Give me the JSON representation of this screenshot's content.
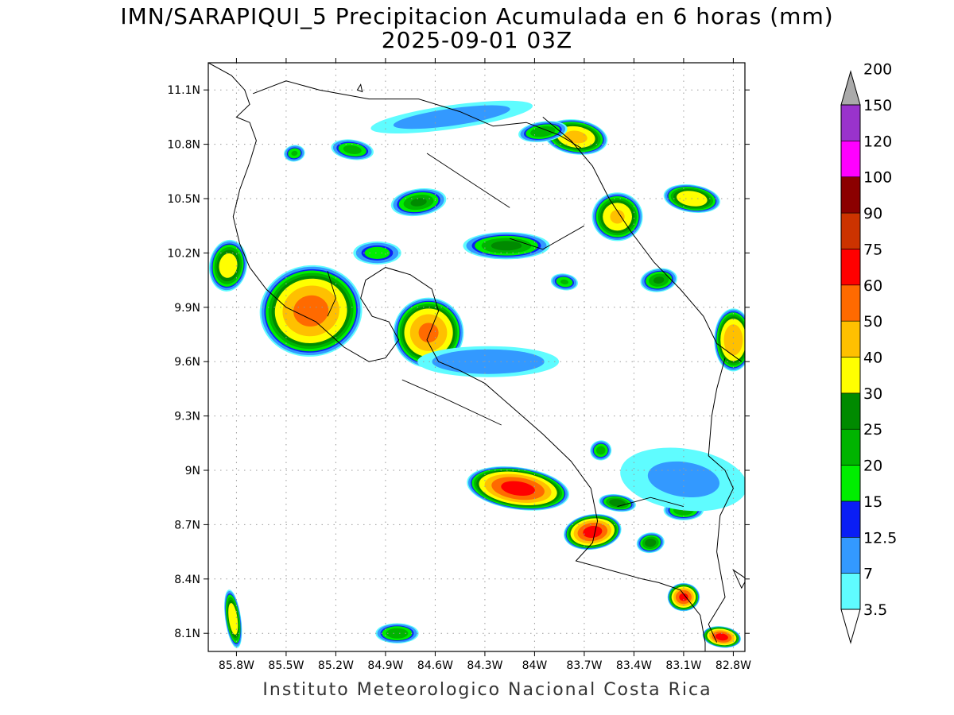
{
  "title": {
    "line1": "IMN/SARAPIQUI_5 Precipitacion Acumulada en 6 horas (mm)",
    "line2": "2025-09-01 03Z"
  },
  "footer": "Instituto Meteorologico Nacional Costa Rica",
  "axes": {
    "lon_range": [
      -85.97,
      -82.73
    ],
    "lat_range": [
      8.0,
      11.25
    ],
    "x_ticks": [
      {
        "value": -85.8,
        "label": "85.8W"
      },
      {
        "value": -85.5,
        "label": "85.5W"
      },
      {
        "value": -85.2,
        "label": "85.2W"
      },
      {
        "value": -84.9,
        "label": "84.9W"
      },
      {
        "value": -84.6,
        "label": "84.6W"
      },
      {
        "value": -84.3,
        "label": "84.3W"
      },
      {
        "value": -84.0,
        "label": "84W"
      },
      {
        "value": -83.7,
        "label": "83.7W"
      },
      {
        "value": -83.4,
        "label": "83.4W"
      },
      {
        "value": -83.1,
        "label": "83.1W"
      },
      {
        "value": -82.8,
        "label": "82.8W"
      }
    ],
    "y_ticks": [
      {
        "value": 11.1,
        "label": "11.1N"
      },
      {
        "value": 10.8,
        "label": "10.8N"
      },
      {
        "value": 10.5,
        "label": "10.5N"
      },
      {
        "value": 10.2,
        "label": "10.2N"
      },
      {
        "value": 9.9,
        "label": "9.9N"
      },
      {
        "value": 9.6,
        "label": "9.6N"
      },
      {
        "value": 9.3,
        "label": "9.3N"
      },
      {
        "value": 9.0,
        "label": "9N"
      },
      {
        "value": 8.7,
        "label": "8.7N"
      },
      {
        "value": 8.4,
        "label": "8.4N"
      },
      {
        "value": 8.1,
        "label": "8.1N"
      }
    ],
    "grid": true
  },
  "legend": {
    "levels": [
      "3.5",
      "7",
      "12.5",
      "15",
      "20",
      "25",
      "30",
      "40",
      "50",
      "60",
      "75",
      "90",
      "100",
      "120",
      "150",
      "200"
    ],
    "colors": [
      "#5ffcff",
      "#3399ff",
      "#0a1ef5",
      "#00ee00",
      "#00b400",
      "#008a00",
      "#ffff00",
      "#ffc000",
      "#ff6a00",
      "#ff0000",
      "#cc3300",
      "#8b0000",
      "#ff00ff",
      "#9933cc",
      "#f5f5f5"
    ],
    "over_color": "#aaaaaa",
    "under_color": "#ffffff"
  },
  "precip_cells": [
    {
      "lon": -85.35,
      "lat": 9.88,
      "peak": 52,
      "rx": 0.32,
      "ry": 0.26
    },
    {
      "lon": -84.64,
      "lat": 9.76,
      "peak": 50,
      "rx": 0.22,
      "ry": 0.2
    },
    {
      "lon": -85.85,
      "lat": 10.13,
      "peak": 35,
      "rx": 0.12,
      "ry": 0.15
    },
    {
      "lon": -84.7,
      "lat": 10.48,
      "peak": 25,
      "rx": 0.18,
      "ry": 0.08
    },
    {
      "lon": -84.17,
      "lat": 10.24,
      "peak": 26,
      "rx": 0.28,
      "ry": 0.08
    },
    {
      "lon": -83.75,
      "lat": 10.84,
      "peak": 42,
      "rx": 0.2,
      "ry": 0.1
    },
    {
      "lon": -83.95,
      "lat": 10.87,
      "peak": 24,
      "rx": 0.16,
      "ry": 0.06
    },
    {
      "lon": -83.5,
      "lat": 10.4,
      "peak": 40,
      "rx": 0.16,
      "ry": 0.14
    },
    {
      "lon": -83.05,
      "lat": 10.5,
      "peak": 38,
      "rx": 0.18,
      "ry": 0.08
    },
    {
      "lon": -83.25,
      "lat": 10.05,
      "peak": 25,
      "rx": 0.12,
      "ry": 0.07
    },
    {
      "lon": -82.8,
      "lat": 9.72,
      "peak": 48,
      "rx": 0.12,
      "ry": 0.18
    },
    {
      "lon": -84.1,
      "lat": 8.9,
      "peak": 62,
      "rx": 0.32,
      "ry": 0.12
    },
    {
      "lon": -83.65,
      "lat": 8.66,
      "peak": 62,
      "rx": 0.18,
      "ry": 0.1
    },
    {
      "lon": -83.1,
      "lat": 8.3,
      "peak": 60,
      "rx": 0.1,
      "ry": 0.08
    },
    {
      "lon": -82.87,
      "lat": 8.08,
      "peak": 62,
      "rx": 0.12,
      "ry": 0.06
    },
    {
      "lon": -85.82,
      "lat": 8.18,
      "peak": 38,
      "rx": 0.05,
      "ry": 0.17
    },
    {
      "lon": -84.83,
      "lat": 8.1,
      "peak": 24,
      "rx": 0.14,
      "ry": 0.06
    },
    {
      "lon": -83.5,
      "lat": 8.82,
      "peak": 28,
      "rx": 0.12,
      "ry": 0.05
    },
    {
      "lon": -83.3,
      "lat": 8.6,
      "peak": 27,
      "rx": 0.09,
      "ry": 0.06
    },
    {
      "lon": -83.1,
      "lat": 8.78,
      "peak": 24,
      "rx": 0.13,
      "ry": 0.06
    },
    {
      "lon": -85.1,
      "lat": 10.77,
      "peak": 22,
      "rx": 0.14,
      "ry": 0.06
    },
    {
      "lon": -85.45,
      "lat": 10.75,
      "peak": 20,
      "rx": 0.07,
      "ry": 0.05
    },
    {
      "lon": -84.95,
      "lat": 10.2,
      "peak": 18,
      "rx": 0.16,
      "ry": 0.07
    },
    {
      "lon": -83.82,
      "lat": 10.04,
      "peak": 20,
      "rx": 0.09,
      "ry": 0.05
    },
    {
      "lon": -83.6,
      "lat": 9.11,
      "peak": 22,
      "rx": 0.07,
      "ry": 0.06
    },
    {
      "lon": -84.28,
      "lat": 9.6,
      "peak": 12,
      "rx": 0.5,
      "ry": 0.1
    },
    {
      "lon": -83.1,
      "lat": 8.95,
      "peak": 8,
      "rx": 0.5,
      "ry": 0.22
    },
    {
      "lon": -84.5,
      "lat": 10.95,
      "peak": 10,
      "rx": 0.6,
      "ry": 0.08
    }
  ],
  "map_lines": {
    "coast_pacific": [
      [
        -85.97,
        11.25
      ],
      [
        -85.83,
        11.18
      ],
      [
        -85.75,
        11.1
      ],
      [
        -85.72,
        11.02
      ],
      [
        -85.8,
        10.95
      ],
      [
        -85.72,
        10.92
      ],
      [
        -85.68,
        10.82
      ],
      [
        -85.72,
        10.7
      ],
      [
        -85.78,
        10.55
      ],
      [
        -85.82,
        10.4
      ],
      [
        -85.78,
        10.25
      ],
      [
        -85.72,
        10.12
      ],
      [
        -85.62,
        10.0
      ],
      [
        -85.5,
        9.9
      ],
      [
        -85.32,
        9.82
      ],
      [
        -85.15,
        9.68
      ],
      [
        -85.0,
        9.6
      ],
      [
        -84.9,
        9.62
      ],
      [
        -84.82,
        9.72
      ],
      [
        -84.88,
        9.82
      ],
      [
        -84.98,
        9.85
      ],
      [
        -85.05,
        9.95
      ],
      [
        -85.02,
        10.05
      ],
      [
        -84.9,
        10.12
      ],
      [
        -84.75,
        10.08
      ],
      [
        -84.62,
        10.0
      ],
      [
        -84.58,
        9.88
      ],
      [
        -84.65,
        9.72
      ],
      [
        -84.58,
        9.6
      ],
      [
        -84.45,
        9.55
      ],
      [
        -84.3,
        9.48
      ],
      [
        -84.15,
        9.36
      ],
      [
        -83.95,
        9.2
      ],
      [
        -83.78,
        9.05
      ],
      [
        -83.66,
        8.9
      ],
      [
        -83.62,
        8.72
      ],
      [
        -83.65,
        8.6
      ],
      [
        -83.75,
        8.5
      ],
      [
        -83.55,
        8.45
      ],
      [
        -83.35,
        8.4
      ],
      [
        -83.25,
        8.38
      ],
      [
        -83.12,
        8.34
      ],
      [
        -83.0,
        8.2
      ],
      [
        -82.97,
        8.05
      ],
      [
        -82.97,
        8.0
      ]
    ],
    "coast_caribbean": [
      [
        -83.95,
        10.95
      ],
      [
        -83.78,
        10.82
      ],
      [
        -83.65,
        10.68
      ],
      [
        -83.55,
        10.5
      ],
      [
        -83.42,
        10.32
      ],
      [
        -83.28,
        10.15
      ],
      [
        -83.12,
        10.0
      ],
      [
        -82.98,
        9.85
      ],
      [
        -82.9,
        9.7
      ],
      [
        -82.75,
        9.6
      ]
    ],
    "border_nic": [
      [
        -85.7,
        11.08
      ],
      [
        -85.5,
        11.15
      ],
      [
        -85.3,
        11.1
      ],
      [
        -85.0,
        11.05
      ],
      [
        -84.7,
        11.05
      ],
      [
        -84.45,
        10.98
      ],
      [
        -84.25,
        10.9
      ],
      [
        -84.05,
        10.92
      ],
      [
        -83.85,
        10.85
      ],
      [
        -83.72,
        10.78
      ]
    ],
    "border_pan": [
      [
        -82.85,
        9.62
      ],
      [
        -82.9,
        9.45
      ],
      [
        -82.93,
        9.3
      ],
      [
        -82.95,
        9.08
      ],
      [
        -82.85,
        9.0
      ],
      [
        -82.8,
        8.9
      ],
      [
        -82.88,
        8.75
      ],
      [
        -82.9,
        8.55
      ],
      [
        -82.85,
        8.3
      ],
      [
        -82.95,
        8.15
      ],
      [
        -82.9,
        8.05
      ]
    ],
    "internal": [
      [
        [
          -85.25,
          10.1
        ],
        [
          -85.2,
          9.95
        ],
        [
          -85.25,
          9.85
        ]
      ],
      [
        [
          -84.8,
          9.5
        ],
        [
          -84.55,
          9.4
        ],
        [
          -84.2,
          9.25
        ]
      ],
      [
        [
          -83.5,
          8.8
        ],
        [
          -83.3,
          8.85
        ],
        [
          -83.1,
          8.8
        ]
      ],
      [
        [
          -84.15,
          10.28
        ],
        [
          -83.95,
          10.22
        ],
        [
          -83.7,
          10.35
        ]
      ],
      [
        [
          -84.65,
          10.75
        ],
        [
          -84.4,
          10.6
        ],
        [
          -84.15,
          10.45
        ]
      ]
    ],
    "islands": [
      [
        [
          -85.07,
          11.1
        ],
        [
          -85.05,
          11.13
        ],
        [
          -85.04,
          11.09
        ],
        [
          -85.07,
          11.1
        ]
      ],
      [
        [
          -82.8,
          8.45
        ],
        [
          -82.72,
          8.4
        ],
        [
          -82.75,
          8.35
        ],
        [
          -82.8,
          8.45
        ]
      ]
    ]
  }
}
